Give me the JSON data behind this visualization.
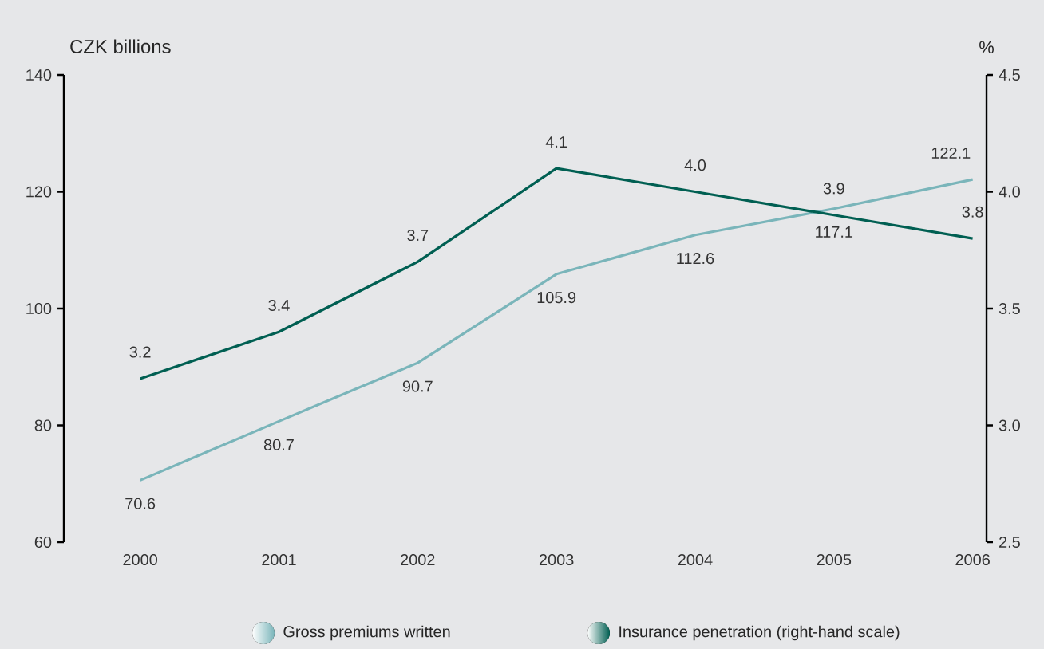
{
  "chart_data": {
    "type": "line",
    "categories": [
      "2000",
      "2001",
      "2002",
      "2003",
      "2004",
      "2005",
      "2006"
    ],
    "ylabel": "CZK billions",
    "y2label": "%",
    "ylim": [
      60,
      140
    ],
    "yticks": [
      60,
      80,
      100,
      120,
      140
    ],
    "y2lim": [
      2.5,
      4.5
    ],
    "y2ticks": [
      {
        "value": 2.5,
        "label": "2.5"
      },
      {
        "value": 3.0,
        "label": "3.0"
      },
      {
        "value": 3.5,
        "label": "3.5"
      },
      {
        "value": 4.0,
        "label": "4.0"
      },
      {
        "value": 4.5,
        "label": "4.5"
      }
    ],
    "series": [
      {
        "name": "Gross premiums written",
        "color": "#7ab5ba",
        "values": [
          70.6,
          80.7,
          90.7,
          105.9,
          112.6,
          117.1,
          122.1
        ],
        "value_labels": [
          "70.6",
          "80.7",
          "90.7",
          "105.9",
          "112.6",
          "117.1",
          "122.1"
        ]
      },
      {
        "name": "Insurance penetration (right-hand scale)",
        "color": "#005f52",
        "axis": "y2",
        "values": [
          3.2,
          3.4,
          3.7,
          4.1,
          4.0,
          3.9,
          3.8
        ],
        "value_labels": [
          "3.2",
          "3.4",
          "3.7",
          "4.1",
          "4.0",
          "3.9",
          "3.8"
        ]
      }
    ],
    "grid": false,
    "legend": "bottom",
    "marker": "none",
    "line_style": "solid"
  }
}
